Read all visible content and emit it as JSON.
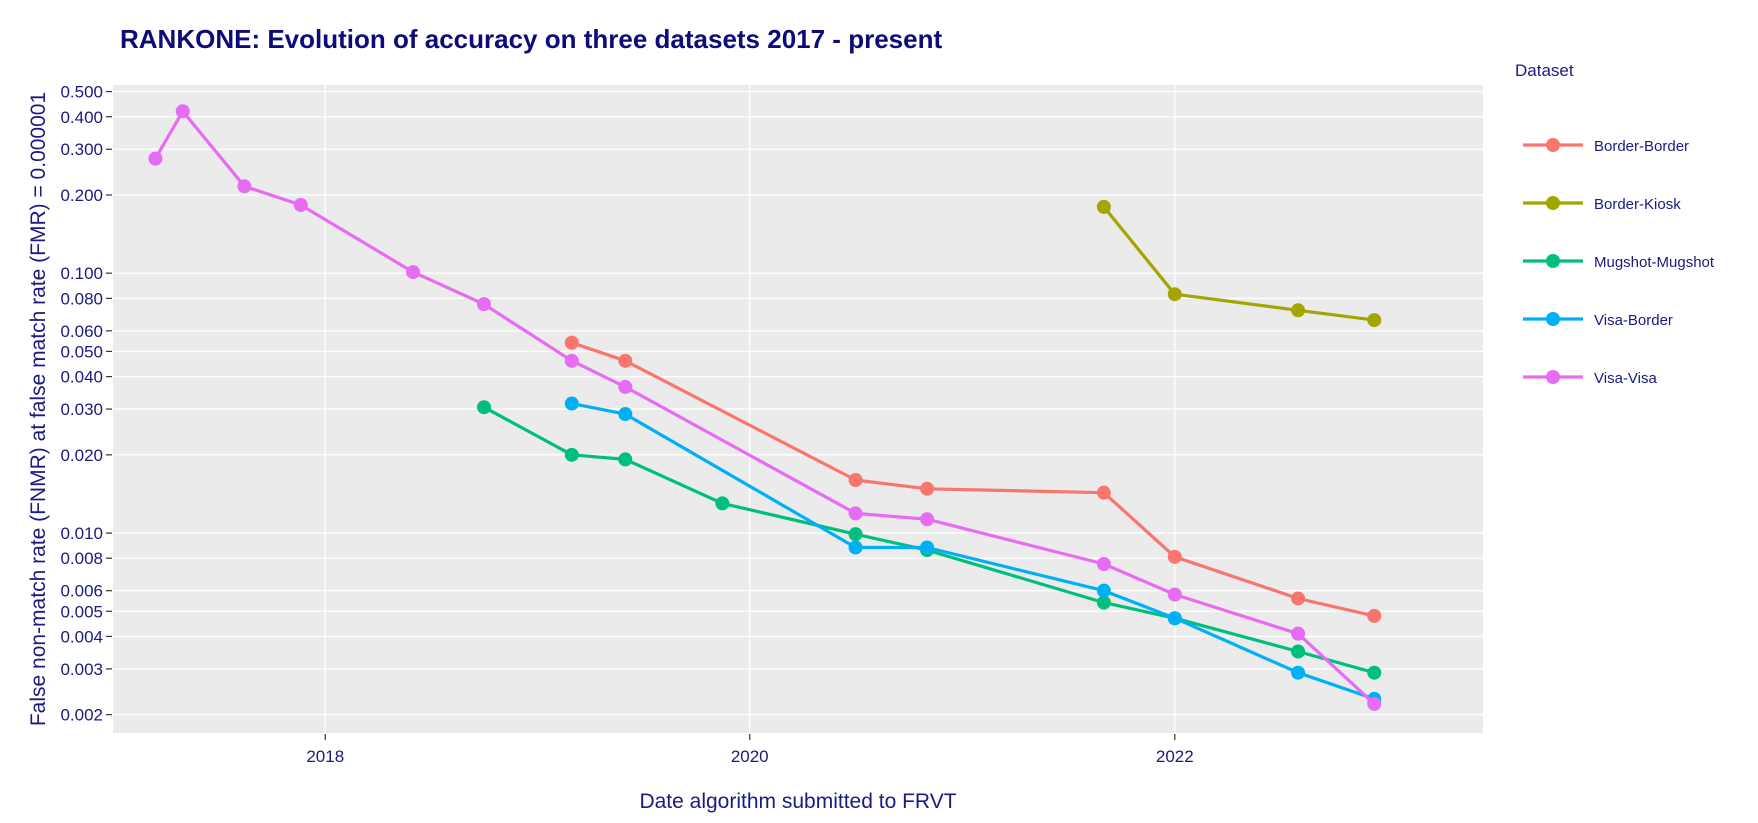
{
  "chart_data": {
    "type": "line",
    "title": "RANKONE: Evolution of accuracy on three datasets 2017 - present",
    "xlabel": "Date algorithm submitted to FRVT",
    "ylabel": "False non-match rate (FNMR) at false match rate (FMR) = 0.000001",
    "x_scale": "time",
    "y_scale": "log",
    "xlim": [
      "2017-01-01",
      "2023-06-15"
    ],
    "ylim": [
      0.0017,
      0.53
    ],
    "x_ticks": [
      {
        "date": "2018-01-01",
        "label": "2018"
      },
      {
        "date": "2020-01-01",
        "label": "2020"
      },
      {
        "date": "2022-01-01",
        "label": "2022"
      }
    ],
    "y_ticks": [
      {
        "value": 0.002,
        "label": "0.002"
      },
      {
        "value": 0.003,
        "label": "0.003"
      },
      {
        "value": 0.004,
        "label": "0.004"
      },
      {
        "value": 0.005,
        "label": "0.005"
      },
      {
        "value": 0.006,
        "label": "0.006"
      },
      {
        "value": 0.008,
        "label": "0.008"
      },
      {
        "value": 0.01,
        "label": "0.010"
      },
      {
        "value": 0.02,
        "label": "0.020"
      },
      {
        "value": 0.03,
        "label": "0.030"
      },
      {
        "value": 0.04,
        "label": "0.040"
      },
      {
        "value": 0.05,
        "label": "0.050"
      },
      {
        "value": 0.06,
        "label": "0.060"
      },
      {
        "value": 0.08,
        "label": "0.080"
      },
      {
        "value": 0.1,
        "label": "0.100"
      },
      {
        "value": 0.2,
        "label": "0.200"
      },
      {
        "value": 0.3,
        "label": "0.300"
      },
      {
        "value": 0.4,
        "label": "0.400"
      },
      {
        "value": 0.5,
        "label": "0.500"
      }
    ],
    "grid": true,
    "legend_title": "Dataset",
    "legend_position": "right",
    "series": [
      {
        "name": "Border-Border",
        "color": "#F8766D",
        "points": [
          {
            "x": "2019-03-01",
            "y": 0.054
          },
          {
            "x": "2019-06-01",
            "y": 0.046
          },
          {
            "x": "2020-07-01",
            "y": 0.016
          },
          {
            "x": "2020-11-01",
            "y": 0.0148
          },
          {
            "x": "2021-09-01",
            "y": 0.0143
          },
          {
            "x": "2022-01-01",
            "y": 0.0081
          },
          {
            "x": "2022-08-01",
            "y": 0.0056
          },
          {
            "x": "2022-12-10",
            "y": 0.0048
          }
        ]
      },
      {
        "name": "Border-Kiosk",
        "color": "#A3A500",
        "points": [
          {
            "x": "2021-09-01",
            "y": 0.18
          },
          {
            "x": "2022-01-01",
            "y": 0.083
          },
          {
            "x": "2022-08-01",
            "y": 0.072
          },
          {
            "x": "2022-12-10",
            "y": 0.066
          }
        ]
      },
      {
        "name": "Mugshot-Mugshot",
        "color": "#00BF7D",
        "points": [
          {
            "x": "2018-10-01",
            "y": 0.0305
          },
          {
            "x": "2019-03-01",
            "y": 0.02
          },
          {
            "x": "2019-06-01",
            "y": 0.0192
          },
          {
            "x": "2019-11-15",
            "y": 0.013
          },
          {
            "x": "2020-07-01",
            "y": 0.0099
          },
          {
            "x": "2020-11-01",
            "y": 0.0086
          },
          {
            "x": "2021-09-01",
            "y": 0.0054
          },
          {
            "x": "2022-01-01",
            "y": 0.0047
          },
          {
            "x": "2022-08-01",
            "y": 0.0035
          },
          {
            "x": "2022-12-10",
            "y": 0.0029
          }
        ]
      },
      {
        "name": "Visa-Border",
        "color": "#00B0F6",
        "points": [
          {
            "x": "2019-03-01",
            "y": 0.0315
          },
          {
            "x": "2019-06-01",
            "y": 0.0287
          },
          {
            "x": "2020-07-01",
            "y": 0.0088
          },
          {
            "x": "2020-11-01",
            "y": 0.0088
          },
          {
            "x": "2021-09-01",
            "y": 0.006
          },
          {
            "x": "2022-01-01",
            "y": 0.0047
          },
          {
            "x": "2022-08-01",
            "y": 0.0029
          },
          {
            "x": "2022-12-10",
            "y": 0.0023
          }
        ]
      },
      {
        "name": "Visa-Visa",
        "color": "#E76BF3",
        "points": [
          {
            "x": "2017-03-15",
            "y": 0.276
          },
          {
            "x": "2017-05-01",
            "y": 0.42
          },
          {
            "x": "2017-08-15",
            "y": 0.216
          },
          {
            "x": "2017-11-20",
            "y": 0.183
          },
          {
            "x": "2018-06-01",
            "y": 0.101
          },
          {
            "x": "2018-10-01",
            "y": 0.076
          },
          {
            "x": "2019-03-01",
            "y": 0.046
          },
          {
            "x": "2019-06-01",
            "y": 0.0365
          },
          {
            "x": "2020-07-01",
            "y": 0.0119
          },
          {
            "x": "2020-11-01",
            "y": 0.0113
          },
          {
            "x": "2021-09-01",
            "y": 0.0076
          },
          {
            "x": "2022-01-01",
            "y": 0.0058
          },
          {
            "x": "2022-08-01",
            "y": 0.0041
          },
          {
            "x": "2022-12-10",
            "y": 0.0022
          }
        ]
      }
    ]
  }
}
